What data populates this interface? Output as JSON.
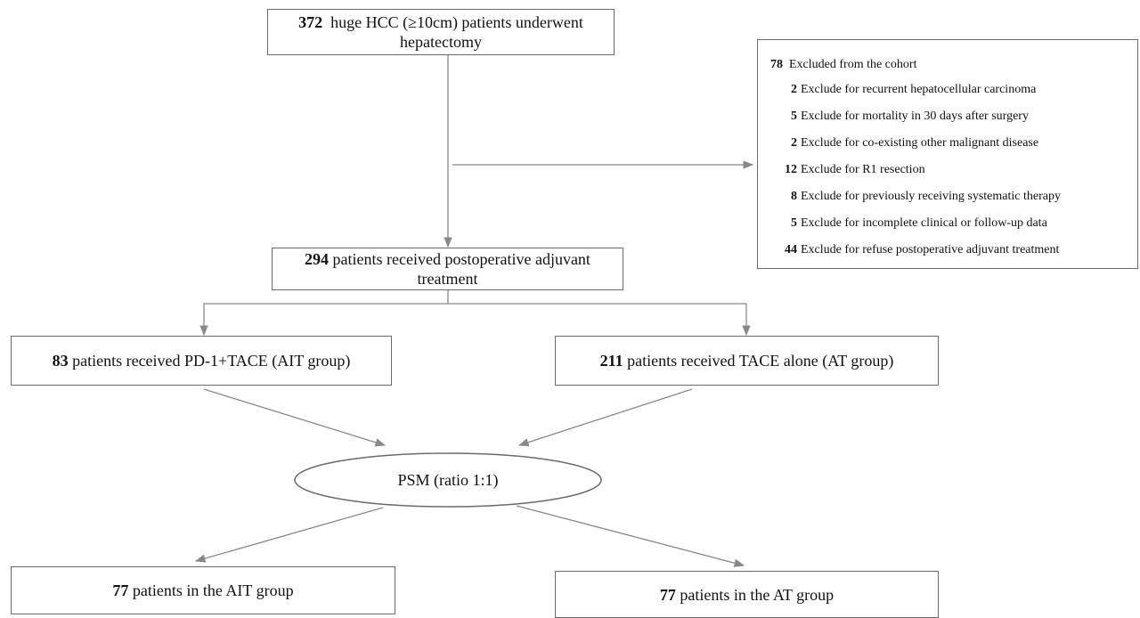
{
  "nodes": [
    {
      "count": 372,
      "label": "huge HCC (≥10cm) patients underwent hepatectomy"
    },
    {
      "count": 294,
      "label": "patients received postoperative adjuvant treatment"
    },
    {
      "count": 83,
      "label": "patients received PD-1+TACE (AIT group)"
    },
    {
      "count": 211,
      "label": "patients received TACE alone (AT group)"
    },
    {
      "label": "PSM (ratio 1:1)"
    },
    {
      "count": 77,
      "label": "patients in the AIT group"
    },
    {
      "count": 77,
      "label": "patients in the AT group"
    }
  ],
  "excluded": {
    "count": 78,
    "label": "Excluded from the cohort",
    "reasons": [
      {
        "count": 2,
        "label": "Exclude for recurrent hepatocellular carcinoma"
      },
      {
        "count": 5,
        "label": "Exclude for mortality in 30 days after surgery"
      },
      {
        "count": 2,
        "label": "Exclude for co-existing other malignant disease"
      },
      {
        "count": 12,
        "label": "Exclude for R1 resection"
      },
      {
        "count": 8,
        "label": "Exclude for previously receiving systematic therapy"
      },
      {
        "count": 5,
        "label": "Exclude for incomplete clinical or follow-up data"
      },
      {
        "count": 44,
        "label": "Exclude for refuse postoperative adjuvant treatment"
      }
    ]
  }
}
